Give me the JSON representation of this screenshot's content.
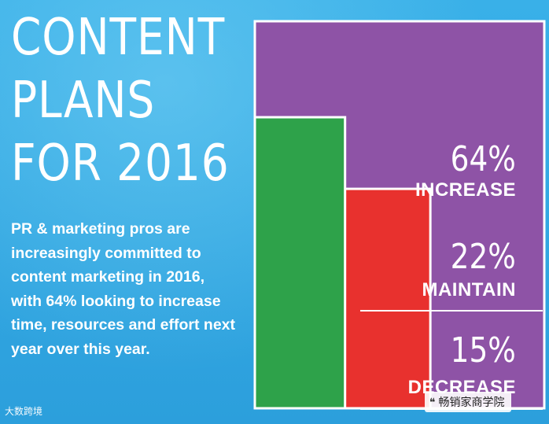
{
  "title": "CONTENT\nPLANS\nFOR 2016",
  "description": "PR & marketing pros are increasingly committed to content marketing in 2016, with 64% looking to increase time, resources and effort next year over this year.",
  "chart_data": {
    "type": "area",
    "categories": [
      "INCREASE",
      "MAINTAIN",
      "DECREASE"
    ],
    "values": [
      64,
      22,
      15
    ],
    "unit": "%",
    "labels": [
      "64%",
      "22%",
      "15%"
    ],
    "colors": [
      "#8e53a6",
      "#e8312e",
      "#2ea24a"
    ],
    "title": "",
    "xlabel": "",
    "ylabel": ""
  },
  "watermarks": {
    "left": "大数跨境",
    "right": "畅销家商学院"
  },
  "icons": {
    "right": "chat-bubble-icon"
  }
}
